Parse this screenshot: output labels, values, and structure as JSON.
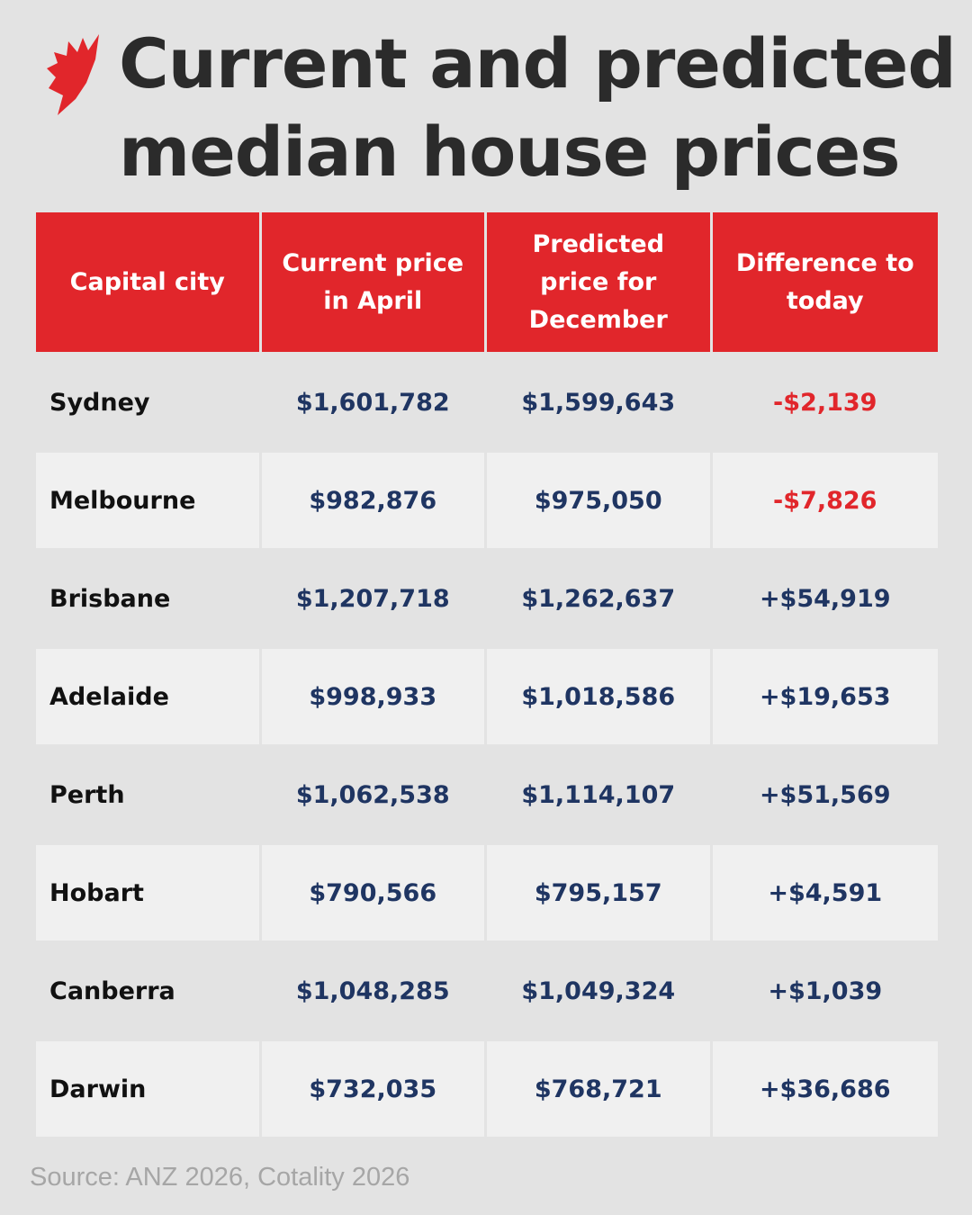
{
  "logo": {
    "name": "SBS logo",
    "color": "#e1262b"
  },
  "title": "Current and predicted median house prices",
  "title_lines": [
    "Current and predicted",
    "median house prices"
  ],
  "colors": {
    "header": "#e1262b",
    "negative": "#e1262b",
    "price": "#1f3562"
  },
  "chart_data": {
    "type": "table",
    "title": "Current and predicted median house prices",
    "columns": [
      "Capital city",
      "Current price in April",
      "Predicted price for December",
      "Difference to today"
    ],
    "rows": [
      [
        "Sydney",
        "$1,601,782",
        "$1,599,643",
        "-$2,139"
      ],
      [
        "Melbourne",
        "$982,876",
        "$975,050",
        "-$7,826"
      ],
      [
        "Brisbane",
        "$1,207,718",
        "$1,262,637",
        "+$54,919"
      ],
      [
        "Adelaide",
        "$998,933",
        "$1,018,586",
        "+$19,653"
      ],
      [
        "Perth",
        "$1,062,538",
        "$1,114,107",
        "+$51,569"
      ],
      [
        "Hobart",
        "$790,566",
        "$795,157",
        "+$4,591"
      ],
      [
        "Canberra",
        "$1,048,285",
        "$1,049,324",
        "+$1,039"
      ],
      [
        "Darwin",
        "$732,035",
        "$768,721",
        "+$36,686"
      ]
    ]
  },
  "source": "Source: ANZ 2026, Cotality 2026"
}
